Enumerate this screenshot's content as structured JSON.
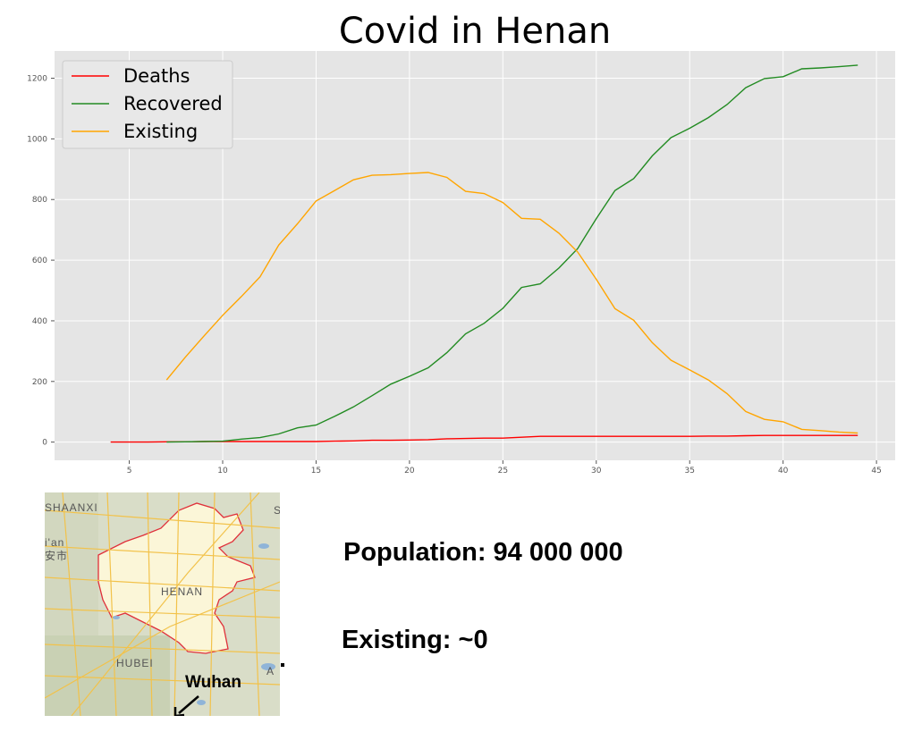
{
  "chart_data": {
    "type": "line",
    "title": "Covid in Henan",
    "xlabel": "",
    "ylabel": "",
    "xlim": [
      1,
      46
    ],
    "ylim": [
      -60,
      1290
    ],
    "xticks": [
      5,
      10,
      15,
      20,
      25,
      30,
      35,
      40,
      45
    ],
    "yticks": [
      0,
      200,
      400,
      600,
      800,
      1000,
      1200
    ],
    "grid": true,
    "legend": "top-left",
    "series": [
      {
        "name": "Deaths",
        "color": "#ff0000",
        "x": [
          4,
          5,
          6,
          7,
          8,
          9,
          10,
          11,
          12,
          13,
          14,
          15,
          16,
          17,
          18,
          19,
          20,
          21,
          22,
          23,
          24,
          25,
          26,
          27,
          28,
          29,
          30,
          31,
          32,
          33,
          34,
          35,
          36,
          37,
          38,
          39,
          40,
          41,
          42,
          43,
          44
        ],
        "y": [
          0,
          0,
          0,
          1,
          1,
          2,
          2,
          2,
          2,
          2,
          2,
          2,
          3,
          4,
          6,
          6,
          7,
          8,
          11,
          12,
          13,
          13,
          16,
          19,
          19,
          19,
          19,
          19,
          19,
          19,
          19,
          19,
          20,
          20,
          21,
          22,
          22,
          22,
          22,
          22,
          22
        ]
      },
      {
        "name": "Recovered",
        "color": "#228b22",
        "x": [
          7,
          8,
          9,
          10,
          11,
          12,
          13,
          14,
          15,
          16,
          17,
          18,
          19,
          20,
          21,
          22,
          23,
          24,
          25,
          26,
          27,
          28,
          29,
          30,
          31,
          32,
          33,
          34,
          35,
          36,
          37,
          38,
          39,
          40,
          41,
          42,
          43,
          44
        ],
        "y": [
          0,
          1,
          2,
          3,
          10,
          15,
          27,
          47,
          56,
          85,
          116,
          153,
          191,
          217,
          245,
          295,
          357,
          392,
          441,
          510,
          522,
          574,
          638,
          737,
          830,
          869,
          944,
          1004,
          1035,
          1070,
          1113,
          1169,
          1199,
          1205,
          1231,
          1234,
          1238,
          1243
        ]
      },
      {
        "name": "Existing",
        "color": "#ffa500",
        "x": [
          7,
          8,
          9,
          10,
          11,
          12,
          13,
          14,
          15,
          16,
          17,
          18,
          19,
          20,
          21,
          22,
          23,
          24,
          25,
          26,
          27,
          28,
          29,
          30,
          31,
          32,
          33,
          34,
          35,
          36,
          37,
          38,
          39,
          40,
          41,
          42,
          43,
          44
        ],
        "y": [
          205,
          280,
          350,
          418,
          480,
          545,
          650,
          720,
          795,
          830,
          865,
          880,
          882,
          886,
          889,
          873,
          827,
          820,
          790,
          738,
          735,
          689,
          627,
          537,
          440,
          402,
          328,
          270,
          238,
          205,
          160,
          101,
          75,
          67,
          42,
          38,
          33,
          30
        ]
      }
    ]
  },
  "map": {
    "labels": {
      "shaanxi": "SHAANXI",
      "xian_top": "i'an",
      "xian_bottom": "安市",
      "henan": "HENAN",
      "hubei": "HUBEI",
      "wuhan": "Wuhan",
      "edge_s": "S",
      "edge_a": "A"
    },
    "colors": {
      "background": "#d9ddc8",
      "province": "#fbf6d8",
      "border": "#e0303a",
      "roads": "#f2c24a"
    }
  },
  "info": {
    "population": "Population:  94 000 000",
    "existing": "Existing: ~0"
  }
}
